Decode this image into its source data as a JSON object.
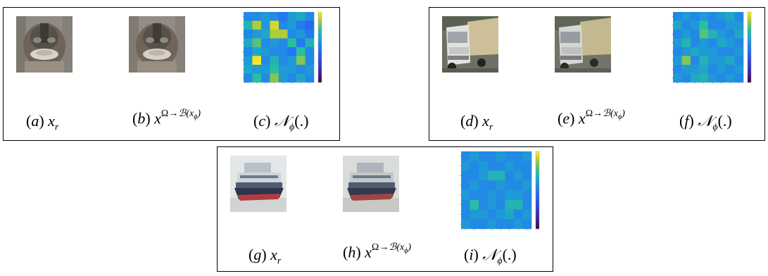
{
  "panels": [
    {
      "id": "cat",
      "thumbs": [
        "cat-original",
        "cat-reconstructed"
      ],
      "captions": [
        {
          "letter": "a",
          "math": "x",
          "sub": "r",
          "sup": ""
        },
        {
          "letter": "b",
          "math": "x",
          "sub": "",
          "sup": "Ω→B(x_ϕ)"
        },
        {
          "letter": "c",
          "math": "𝒩",
          "sub": "ϕ",
          "sup": "",
          "tail": "(.)"
        }
      ],
      "heatmap": [
        [
          0.55,
          0.55,
          0.6,
          0.55,
          0.5,
          0.6,
          0.65,
          0.55
        ],
        [
          0.7,
          0.9,
          0.6,
          0.95,
          0.55,
          0.6,
          0.5,
          0.45
        ],
        [
          0.55,
          0.6,
          0.65,
          0.9,
          0.9,
          0.55,
          0.6,
          0.5
        ],
        [
          0.65,
          0.8,
          0.55,
          0.6,
          0.55,
          0.75,
          0.5,
          0.7
        ],
        [
          0.55,
          0.65,
          0.6,
          0.55,
          0.55,
          0.5,
          0.75,
          0.55
        ],
        [
          0.6,
          1.0,
          0.55,
          0.7,
          0.55,
          0.6,
          0.85,
          0.55
        ],
        [
          0.65,
          0.6,
          0.6,
          0.75,
          0.6,
          0.6,
          0.55,
          0.6
        ],
        [
          0.55,
          0.75,
          0.55,
          0.85,
          0.6,
          0.55,
          0.65,
          0.55
        ]
      ]
    },
    {
      "id": "truck",
      "thumbs": [
        "truck-original",
        "truck-reconstructed"
      ],
      "captions": [
        {
          "letter": "d",
          "math": "x",
          "sub": "r",
          "sup": ""
        },
        {
          "letter": "e",
          "math": "x",
          "sub": "",
          "sup": "Ω→B(x_ϕ)"
        },
        {
          "letter": "f",
          "math": "𝒩",
          "sub": "ϕ",
          "sup": "",
          "tail": "(.)"
        }
      ],
      "heatmap": [
        [
          0.55,
          0.6,
          0.55,
          0.6,
          0.55,
          0.6,
          0.65,
          0.55
        ],
        [
          0.65,
          0.55,
          0.6,
          0.75,
          0.55,
          0.55,
          0.6,
          0.6
        ],
        [
          0.55,
          0.6,
          0.55,
          0.8,
          0.7,
          0.6,
          0.55,
          0.65
        ],
        [
          0.6,
          0.7,
          0.55,
          0.6,
          0.55,
          0.65,
          0.6,
          0.55
        ],
        [
          0.55,
          0.6,
          0.65,
          0.6,
          0.6,
          0.55,
          0.55,
          0.6
        ],
        [
          0.6,
          0.85,
          0.55,
          0.7,
          0.6,
          0.6,
          0.65,
          0.55
        ],
        [
          0.55,
          0.6,
          0.6,
          0.65,
          0.55,
          0.6,
          0.55,
          0.6
        ],
        [
          0.6,
          0.55,
          0.65,
          0.7,
          0.6,
          0.55,
          0.6,
          0.55
        ]
      ]
    },
    {
      "id": "ship",
      "thumbs": [
        "ship-original",
        "ship-reconstructed"
      ],
      "captions": [
        {
          "letter": "g",
          "math": "x",
          "sub": "r",
          "sup": ""
        },
        {
          "letter": "h",
          "math": "x",
          "sub": "",
          "sup": "Ω→B(x_ϕ)"
        },
        {
          "letter": "i",
          "math": "𝒩",
          "sub": "ϕ",
          "sup": "",
          "tail": "(.)"
        }
      ],
      "heatmap": [
        [
          0.55,
          0.6,
          0.55,
          0.55,
          0.6,
          0.55,
          0.55,
          0.6
        ],
        [
          0.6,
          0.55,
          0.6,
          0.55,
          0.55,
          0.6,
          0.55,
          0.55
        ],
        [
          0.55,
          0.55,
          0.6,
          0.7,
          0.7,
          0.55,
          0.6,
          0.55
        ],
        [
          0.55,
          0.6,
          0.55,
          0.55,
          0.6,
          0.55,
          0.55,
          0.6
        ],
        [
          0.6,
          0.55,
          0.55,
          0.6,
          0.55,
          0.6,
          0.6,
          0.55
        ],
        [
          0.55,
          0.75,
          0.55,
          0.6,
          0.55,
          0.7,
          0.7,
          0.55
        ],
        [
          0.55,
          0.6,
          0.6,
          0.55,
          0.6,
          0.65,
          0.55,
          0.6
        ],
        [
          0.6,
          0.55,
          0.55,
          0.6,
          0.55,
          0.55,
          0.6,
          0.55
        ]
      ]
    }
  ],
  "caption_text": {
    "a": "(a)",
    "b": "(b)",
    "c": "(c)",
    "d": "(d)",
    "e": "(e)",
    "f": "(f)",
    "g": "(g)",
    "h": "(h)",
    "i": "(i)",
    "x": "x",
    "r": "r",
    "sup": "Ω→ℬ(x",
    "supsub": "ϕ",
    "supclose": ")",
    "N": "𝒩",
    "phi": "ϕ",
    "tail": "(.)"
  }
}
